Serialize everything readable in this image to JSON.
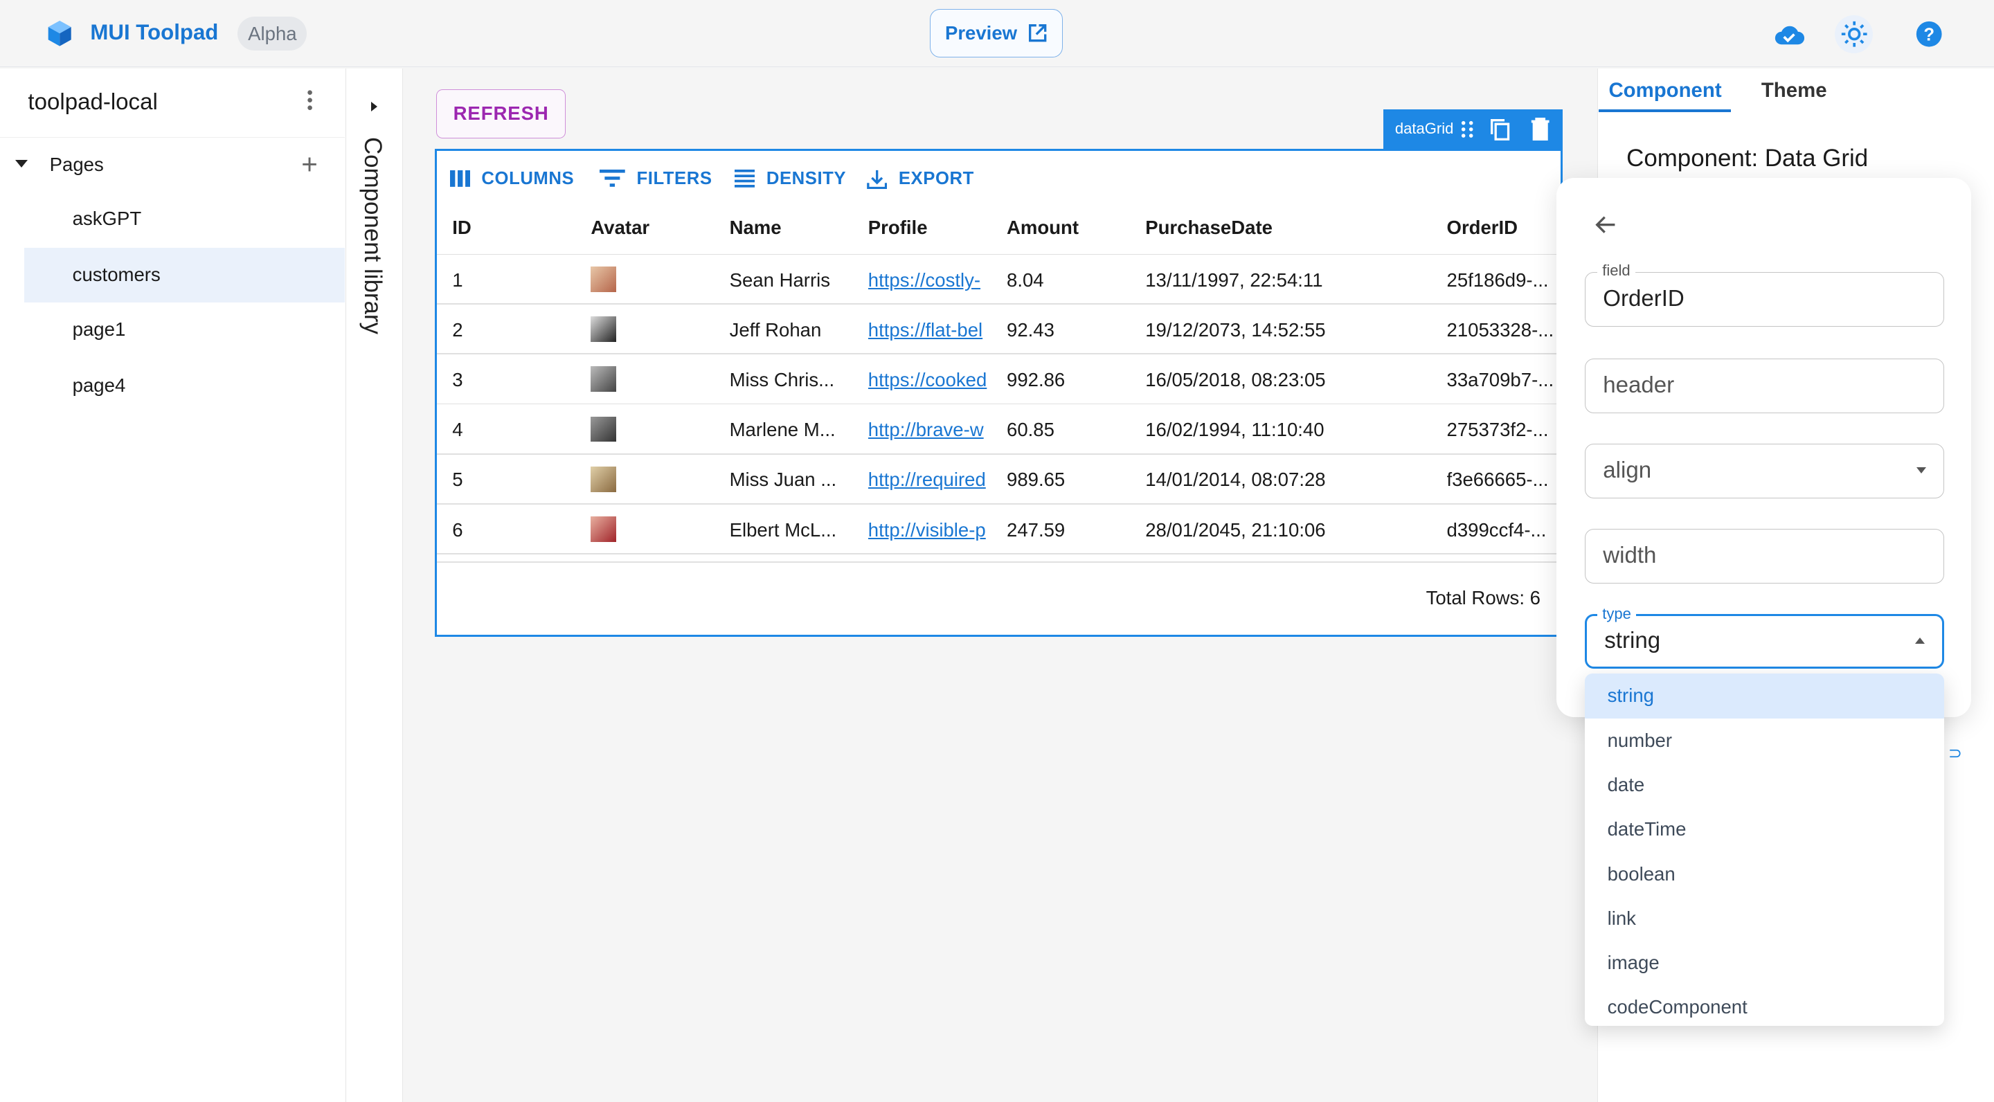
{
  "header": {
    "brand": "MUI Toolpad",
    "badge": "Alpha",
    "preview_label": "Preview",
    "icons": [
      "cloud-done-icon",
      "light-mode-icon",
      "help-icon"
    ],
    "accent": "#1976d2"
  },
  "sidebar": {
    "project": "toolpad-local",
    "section": "Pages",
    "items": [
      {
        "label": "askGPT"
      },
      {
        "label": "customers",
        "selected": true
      },
      {
        "label": "page1"
      },
      {
        "label": "page4"
      }
    ]
  },
  "component_library": {
    "label": "Component library"
  },
  "canvas": {
    "refresh_label": "REFRESH",
    "chip_label": "dataGrid",
    "grid": {
      "toolbar": [
        "COLUMNS",
        "FILTERS",
        "DENSITY",
        "EXPORT"
      ],
      "columns": [
        "ID",
        "Avatar",
        "Name",
        "Profile",
        "Amount",
        "PurchaseDate",
        "OrderID"
      ],
      "rows": [
        [
          "1",
          "Sean Harris",
          "https://costly-",
          "8.04",
          "13/11/1997, 22:54:11",
          "25f186d9-..."
        ],
        [
          "2",
          "Jeff Rohan",
          "https://flat-bel",
          "92.43",
          "19/12/2073, 14:52:55",
          "21053328-..."
        ],
        [
          "3",
          "Miss Chris...",
          "https://cooked",
          "992.86",
          "16/05/2018, 08:23:05",
          "33a709b7-..."
        ],
        [
          "4",
          "Marlene M...",
          "http://brave-w",
          "60.85",
          "16/02/1994, 11:10:40",
          "275373f2-..."
        ],
        [
          "5",
          "Miss Juan ...",
          "http://required",
          "989.65",
          "14/01/2014, 08:07:28",
          "f3e66665-..."
        ],
        [
          "6",
          "Elbert McL...",
          "http://visible-p",
          "247.59",
          "28/01/2045, 21:10:06",
          "d399ccf4-..."
        ]
      ],
      "footer": "Total Rows: 6"
    }
  },
  "right_panel": {
    "tabs": [
      "Component",
      "Theme"
    ],
    "active_tab": "Component",
    "title": "Component: Data Grid",
    "column_editor": {
      "field_label": "field",
      "field_value": "OrderID",
      "header_placeholder": "header",
      "align_placeholder": "align",
      "width_placeholder": "width",
      "type_label": "type",
      "type_value": "string",
      "type_options": [
        "string",
        "number",
        "date",
        "dateTime",
        "boolean",
        "link",
        "image",
        "codeComponent"
      ]
    }
  }
}
